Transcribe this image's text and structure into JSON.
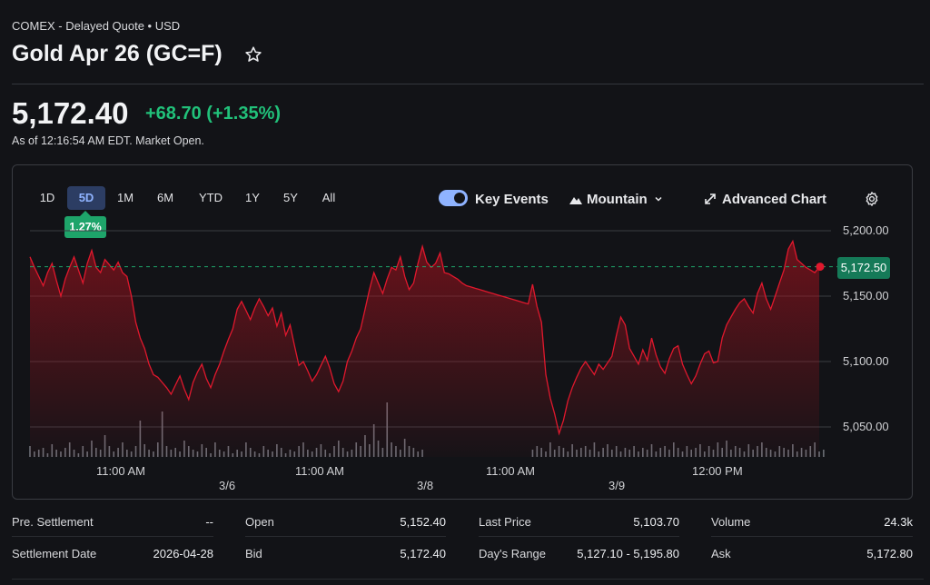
{
  "header": {
    "exchange": "COMEX - Delayed Quote • USD",
    "title": "Gold Apr 26 (GC=F)",
    "price": "5,172.40",
    "change": "+68.70",
    "change_pct": "(+1.35%)",
    "as_of": "As of 12:16:54 AM EDT. Market Open."
  },
  "chart_controls": {
    "ranges": [
      "1D",
      "5D",
      "1M",
      "6M",
      "YTD",
      "1Y",
      "5Y",
      "All"
    ],
    "active_range": "5D",
    "range_change_badge": "1.27%",
    "key_events_label": "Key Events",
    "key_events_on": true,
    "chart_type": "Mountain",
    "advanced_chart": "Advanced Chart"
  },
  "colors": {
    "line": "#e0182d",
    "accent_up": "#21c17a",
    "active_tab": "#8fb3ff",
    "price_badge": "#157a58"
  },
  "chart_data": {
    "type": "area",
    "title": "",
    "ylabel": "",
    "ylim": [
      5030,
      5205
    ],
    "y_ticks": [
      "5,200.00",
      "5,150.00",
      "5,100.00",
      "5,050.00"
    ],
    "x_time_labels": [
      "11:00 AM",
      "11:00 AM",
      "11:00 AM",
      "12:00 PM"
    ],
    "x_date_labels": [
      "3/6",
      "3/8",
      "3/9"
    ],
    "current_price_label": "5,172.50",
    "reference_line": 5172.5,
    "series": [
      {
        "values": [
          5180,
          5172,
          5165,
          5158,
          5168,
          5175,
          5162,
          5150,
          5163,
          5172,
          5180,
          5170,
          5160,
          5175,
          5185,
          5172,
          5168,
          5178,
          5174,
          5170,
          5176,
          5168,
          5165,
          5150,
          5130,
          5118,
          5110,
          5098,
          5090,
          5088,
          5084,
          5080,
          5075,
          5082,
          5089,
          5079,
          5071,
          5084,
          5092,
          5098,
          5087,
          5080,
          5090,
          5098,
          5108,
          5117,
          5125,
          5140,
          5146,
          5139,
          5132,
          5141,
          5148,
          5142,
          5135,
          5141,
          5127,
          5137,
          5120,
          5128,
          5112,
          5097,
          5100,
          5093,
          5085,
          5090,
          5097,
          5104,
          5095,
          5083,
          5077,
          5085,
          5100,
          5108,
          5118,
          5125,
          5140,
          5155,
          5168,
          5160,
          5152,
          5163,
          5172,
          5170,
          5180,
          5165,
          5155,
          5160,
          5175,
          5188,
          5176,
          5172,
          5175,
          5183,
          5168,
          5167,
          5165,
          5163,
          5160,
          5158,
          5157,
          5156,
          5155,
          5154,
          5153,
          5152,
          5151,
          5150,
          5149,
          5148,
          5147,
          5146,
          5145,
          5144,
          5159,
          5142,
          5130,
          5090,
          5072,
          5060,
          5045,
          5055,
          5070,
          5080,
          5088,
          5095,
          5100,
          5095,
          5090,
          5098,
          5094,
          5099,
          5104,
          5120,
          5134,
          5128,
          5110,
          5104,
          5098,
          5109,
          5101,
          5118,
          5105,
          5096,
          5091,
          5102,
          5110,
          5112,
          5098,
          5090,
          5083,
          5089,
          5098,
          5106,
          5108,
          5099,
          5100,
          5118,
          5128,
          5134,
          5140,
          5145,
          5148,
          5142,
          5137,
          5152,
          5160,
          5148,
          5140,
          5150,
          5160,
          5170,
          5186,
          5192,
          5178,
          5175,
          5172,
          5170,
          5168,
          5172
        ]
      }
    ],
    "volume": [
      6,
      3,
      4,
      5,
      2,
      7,
      4,
      3,
      5,
      8,
      4,
      2,
      6,
      3,
      9,
      5,
      4,
      12,
      6,
      3,
      5,
      8,
      4,
      3,
      6,
      20,
      7,
      4,
      3,
      8,
      25,
      6,
      4,
      5,
      3,
      9,
      6,
      4,
      3,
      7,
      5,
      2,
      8,
      4,
      3,
      6,
      2,
      4,
      3,
      8,
      5,
      3,
      2,
      6,
      4,
      3,
      7,
      5,
      2,
      4,
      3,
      6,
      8,
      4,
      3,
      5,
      7,
      4,
      2,
      6,
      9,
      5,
      3,
      4,
      8,
      6,
      12,
      7,
      18,
      9,
      5,
      30,
      8,
      6,
      4,
      10,
      6,
      5,
      3,
      4,
      0,
      0,
      0,
      0,
      0,
      0,
      0,
      0,
      0,
      0,
      0,
      0,
      0,
      0,
      0,
      0,
      0,
      0,
      0,
      0,
      0,
      0,
      0,
      0,
      4,
      6,
      5,
      3,
      8,
      4,
      6,
      5,
      3,
      7,
      4,
      5,
      6,
      4,
      8,
      3,
      5,
      7,
      4,
      6,
      3,
      5,
      4,
      6,
      3,
      5,
      4,
      7,
      3,
      5,
      6,
      4,
      8,
      5,
      3,
      6,
      4,
      5,
      7,
      3,
      6,
      4,
      8,
      5,
      9,
      4,
      6,
      5,
      3,
      7,
      4,
      6,
      8,
      5,
      4,
      3,
      6,
      5,
      4,
      7,
      3,
      5,
      4,
      6,
      8,
      3,
      4
    ]
  },
  "stats": {
    "col1": [
      {
        "label": "Pre. Settlement",
        "value": "--"
      },
      {
        "label": "Settlement Date",
        "value": "2026-04-28"
      }
    ],
    "col2": [
      {
        "label": "Open",
        "value": "5,152.40"
      },
      {
        "label": "Bid",
        "value": "5,172.40"
      }
    ],
    "col3": [
      {
        "label": "Last Price",
        "value": "5,103.70"
      },
      {
        "label": "Day's Range",
        "value": "5,127.10 - 5,195.80"
      }
    ],
    "col4": [
      {
        "label": "Volume",
        "value": "24.3k"
      },
      {
        "label": "Ask",
        "value": "5,172.80"
      }
    ]
  }
}
